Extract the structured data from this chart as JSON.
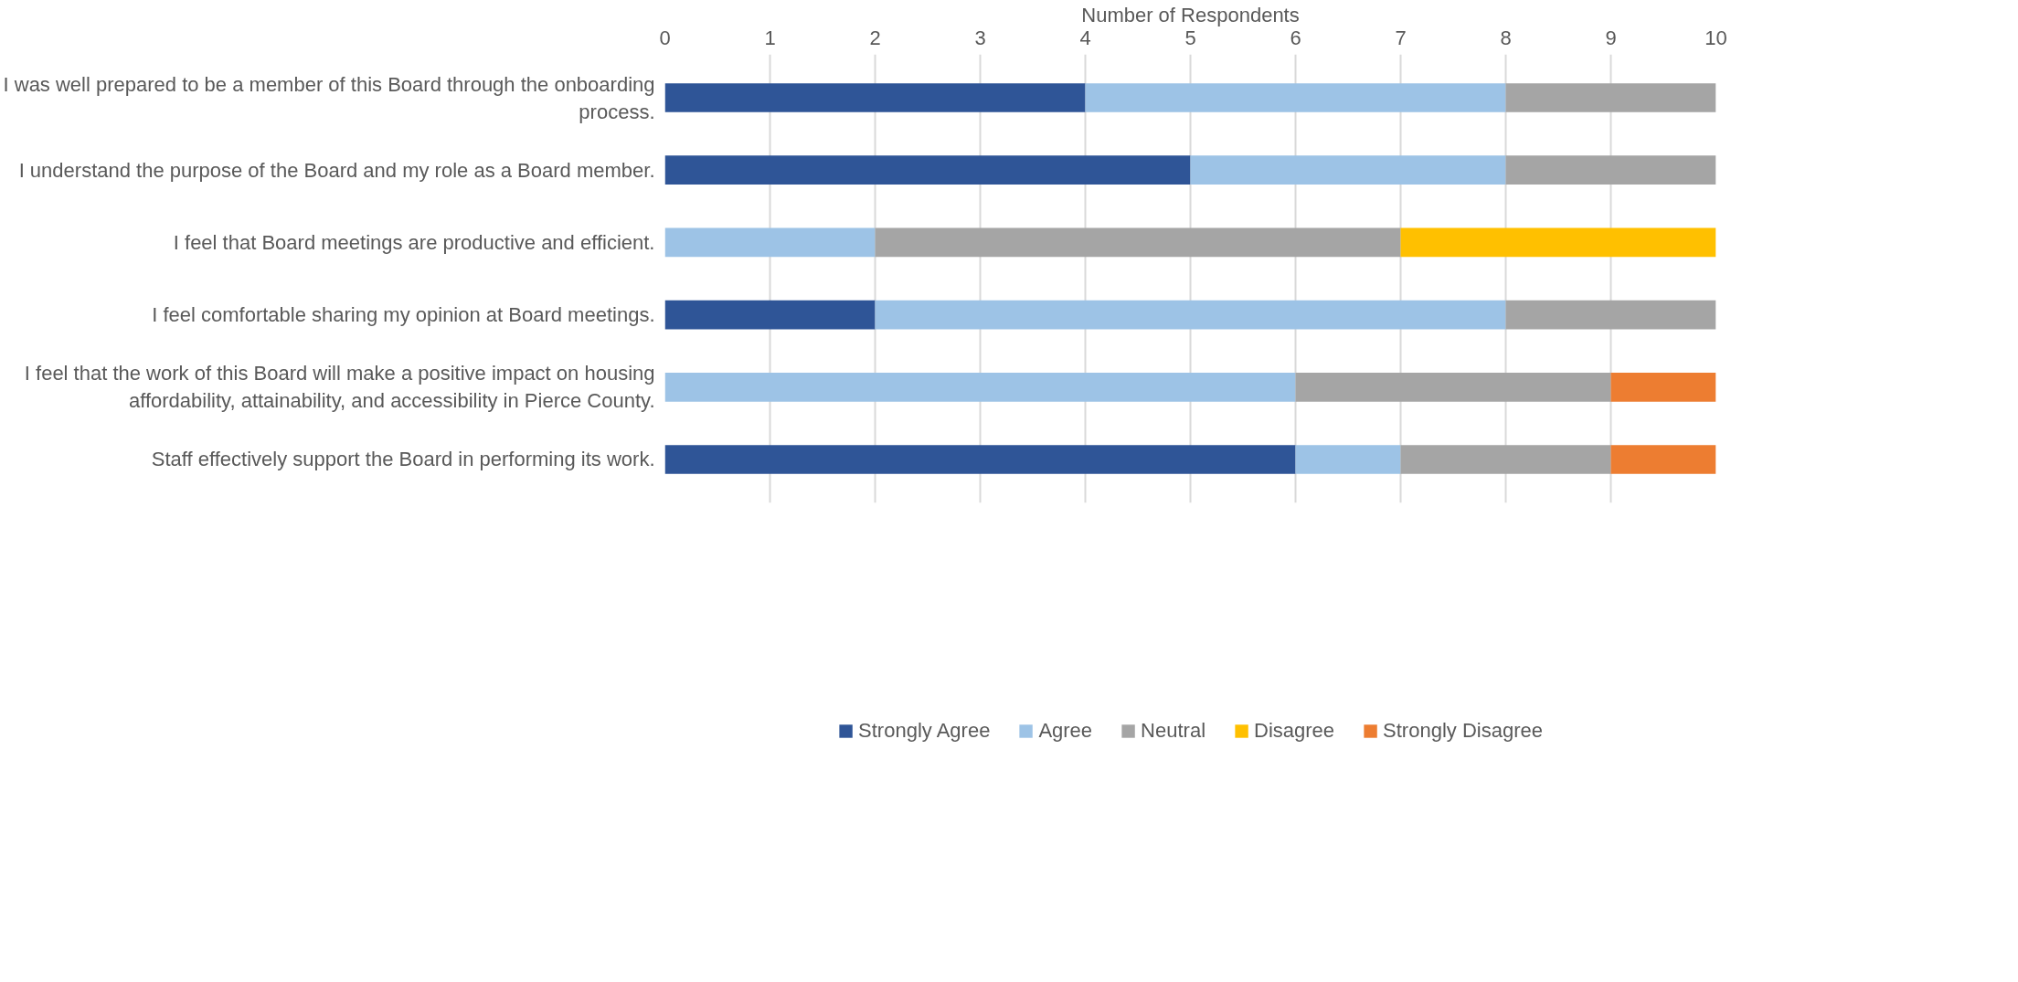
{
  "chart_data": {
    "type": "bar",
    "orientation": "horizontal",
    "stacked": true,
    "xlabel": "Number of Respondents",
    "categories": [
      "I was well prepared to be a member of this Board through the onboarding process.",
      "I understand the purpose of the Board and my role as a Board member.",
      "I feel that Board meetings are productive and efficient.",
      "I feel comfortable sharing my opinion at Board meetings.",
      "I feel that the work of this Board will make a positive impact on housing affordability, attainability, and accessibility in Pierce County.",
      "Staff effectively support the Board in performing its work."
    ],
    "series": [
      {
        "name": "Strongly Agree",
        "color": "#2f5597",
        "values": [
          4,
          5,
          0,
          2,
          0,
          6
        ]
      },
      {
        "name": "Agree",
        "color": "#9dc3e6",
        "values": [
          4,
          3,
          2,
          6,
          6,
          1
        ]
      },
      {
        "name": "Neutral",
        "color": "#a5a5a5",
        "values": [
          2,
          2,
          5,
          2,
          3,
          2
        ]
      },
      {
        "name": "Disagree",
        "color": "#ffc000",
        "values": [
          0,
          0,
          3,
          0,
          0,
          0
        ]
      },
      {
        "name": "Strongly Disagree",
        "color": "#ed7d31",
        "values": [
          0,
          0,
          0,
          0,
          1,
          1
        ]
      }
    ],
    "xlim": [
      0,
      10
    ],
    "xticks": [
      0,
      1,
      2,
      3,
      4,
      5,
      6,
      7,
      8,
      9,
      10
    ],
    "grid": "x",
    "legend": "bottom"
  }
}
